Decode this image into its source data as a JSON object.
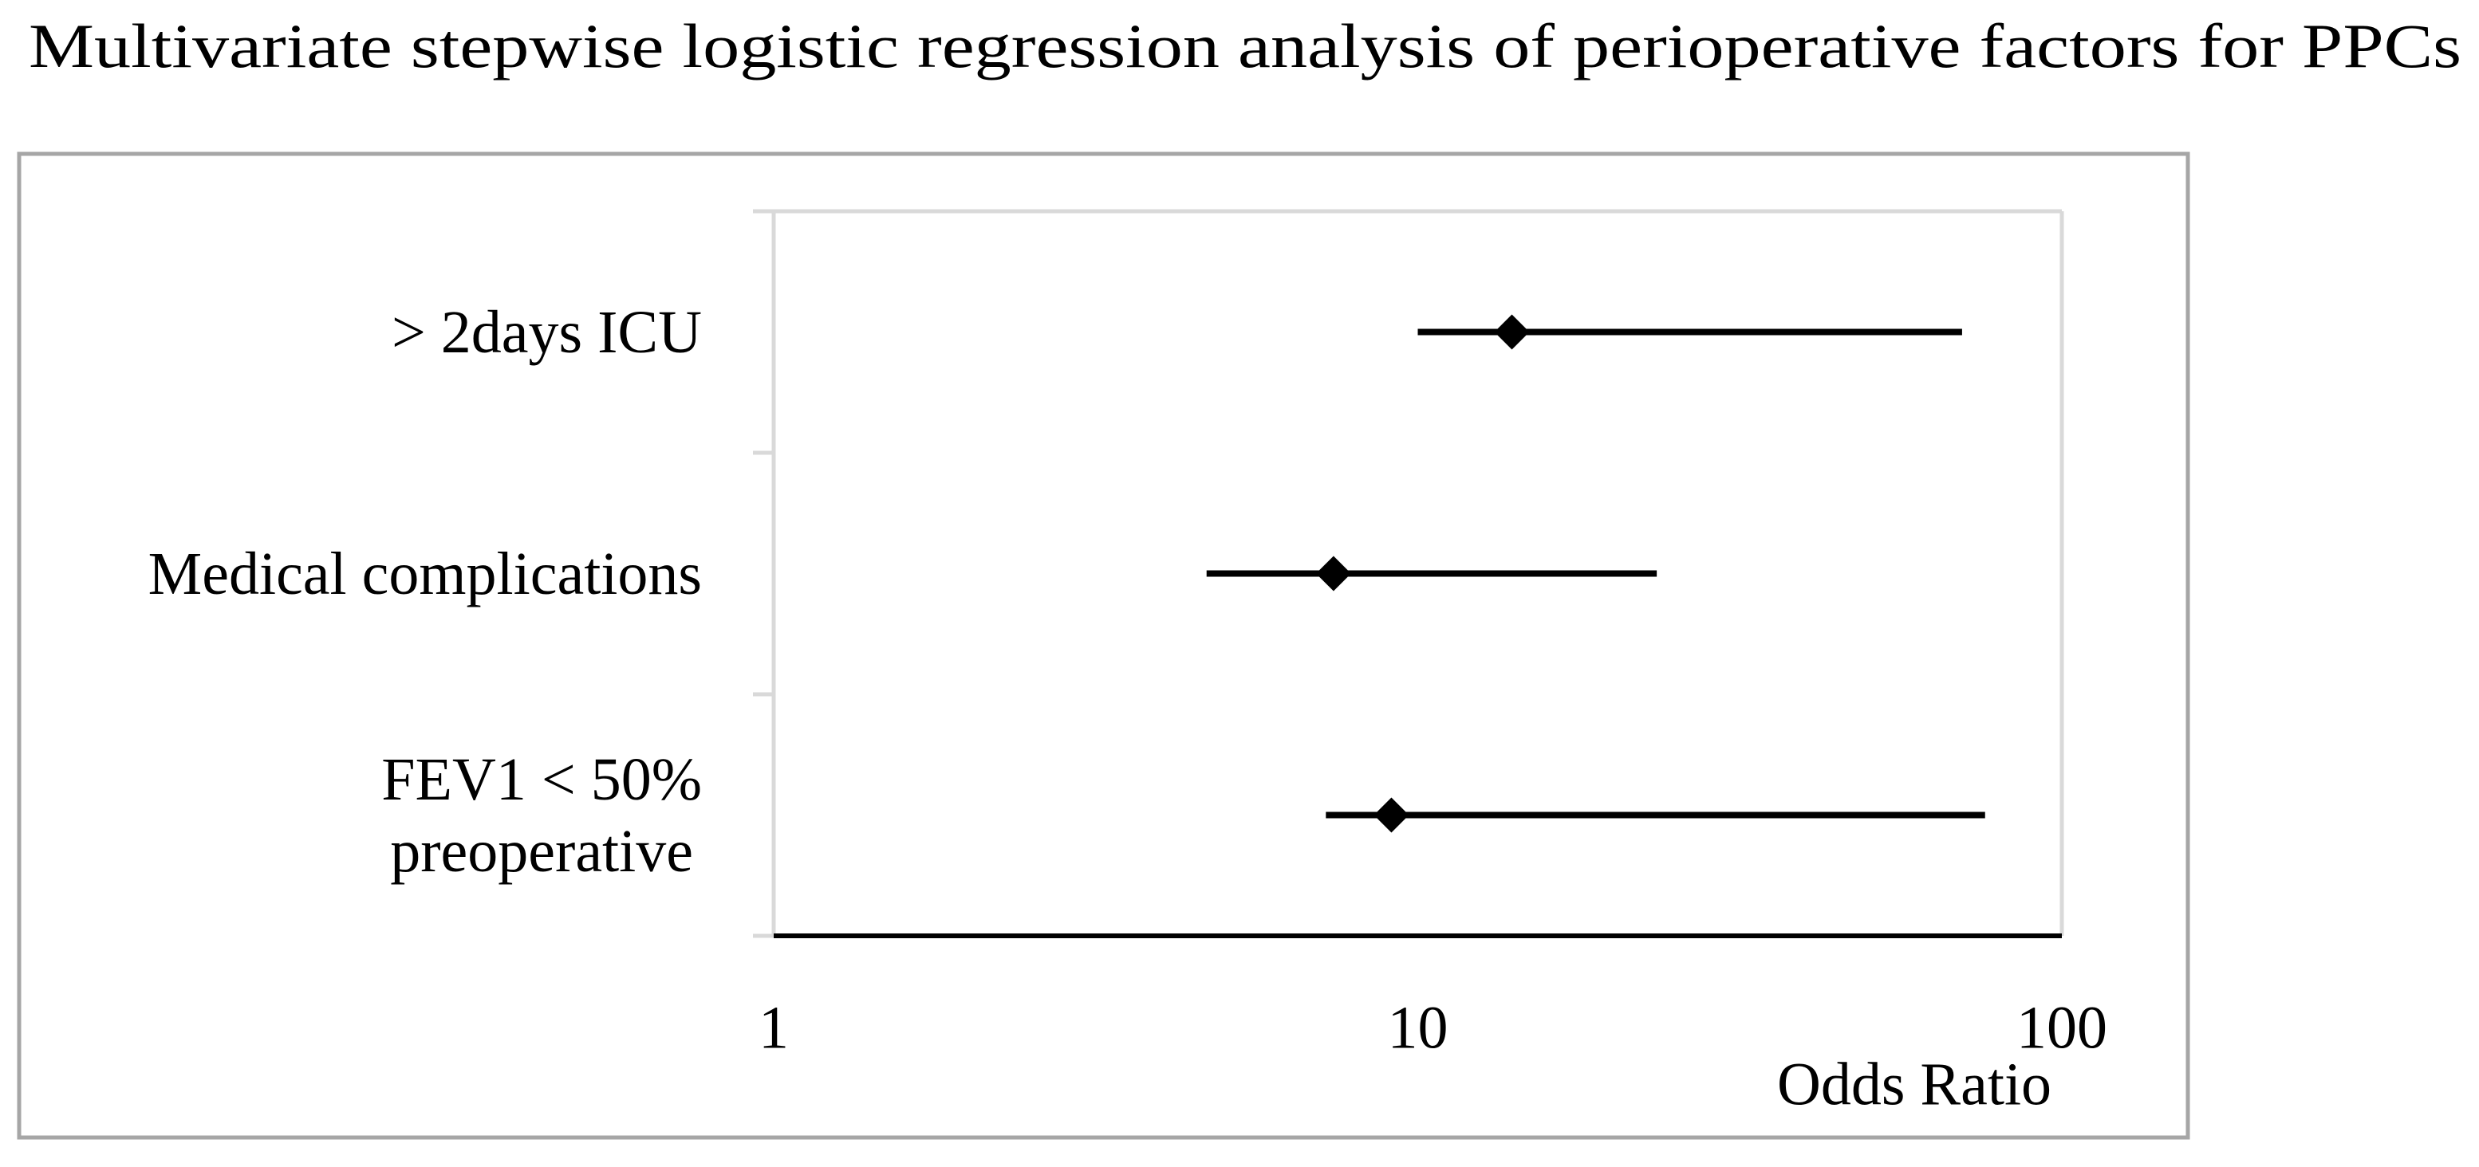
{
  "chart_data": {
    "type": "forest",
    "title": "Multivariate stepwise logistic regression analysis of perioperative factors for PPCs",
    "categories": [
      "> 2days ICU",
      "Medical complications",
      "FEV1 < 50%\npreoperative"
    ],
    "values": [
      14,
      7.4,
      9.1
    ],
    "ci_lower": [
      10,
      4.7,
      7.2
    ],
    "ci_upper": [
      70,
      23.5,
      76
    ],
    "color": "#000000",
    "xlabel": "Odds Ratio",
    "xlim": [
      1,
      100
    ],
    "xticks": [
      1,
      10,
      100
    ],
    "log_x": true
  }
}
